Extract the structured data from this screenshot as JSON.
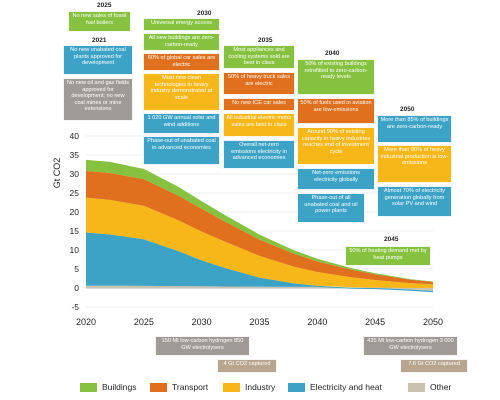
{
  "chart_data": {
    "type": "area",
    "ylabel": "Gt CO2",
    "ylim": [
      -5,
      40
    ],
    "yticks": [
      -5,
      0,
      5,
      10,
      15,
      20,
      25,
      30,
      35,
      40
    ],
    "xlim": [
      2020,
      2050
    ],
    "xticks": [
      2020,
      2025,
      2030,
      2035,
      2040,
      2045,
      2050
    ],
    "x": [
      2020,
      2022,
      2025,
      2028,
      2030,
      2032,
      2035,
      2038,
      2040,
      2043,
      2045,
      2048,
      2050
    ],
    "series": [
      {
        "name": "Other",
        "color": "#c9c2b1",
        "values": [
          0.6,
          0.6,
          0.55,
          0.5,
          0.45,
          0.4,
          0.35,
          0.3,
          0.3,
          0.2,
          0.1,
          -0.4,
          -0.8
        ]
      },
      {
        "name": "Electricity and heat",
        "color": "#3da3c6",
        "values": [
          14,
          13.5,
          12.3,
          9.2,
          6.8,
          4.9,
          2.4,
          0.9,
          0.3,
          -0.2,
          -0.3,
          -0.3,
          -0.3
        ]
      },
      {
        "name": "Industry",
        "color": "#f7b719",
        "values": [
          9.2,
          9.1,
          8.8,
          8.1,
          7.6,
          6.9,
          5.7,
          4.4,
          3.6,
          2.6,
          2.0,
          1.3,
          1.0
        ]
      },
      {
        "name": "Transport",
        "color": "#e06f1e",
        "values": [
          7.0,
          7.1,
          7.0,
          6.5,
          6.0,
          5.3,
          4.3,
          3.4,
          2.8,
          2.0,
          1.5,
          0.9,
          0.6
        ]
      },
      {
        "name": "Buildings",
        "color": "#86c240",
        "values": [
          2.9,
          2.9,
          2.7,
          2.3,
          2.0,
          1.7,
          1.3,
          0.9,
          0.7,
          0.4,
          0.3,
          0.15,
          0.1
        ]
      }
    ]
  },
  "legend": [
    {
      "label": "Buildings",
      "color": "#86c240"
    },
    {
      "label": "Transport",
      "color": "#e06f1e"
    },
    {
      "label": "Industry",
      "color": "#f7b719"
    },
    {
      "label": "Electricity and heat",
      "color": "#3da3c6"
    },
    {
      "label": "Other",
      "color": "#c9c2b1"
    }
  ],
  "milestones": {
    "y2025": "2025",
    "y2021": "2021",
    "y2030": "2030",
    "y2035": "2035",
    "y2040": "2040",
    "y2045": "2045",
    "y2050": "2050",
    "m2025_boilers": "No new sales of fossil fuel boilers",
    "m2021_coal": "No new unabated coal plants approved for development",
    "m2021_oilgas": "No new oil and gas fields approved for development; no new coal mines or mine extensions",
    "m2030_access": "Universal energy access",
    "m2030_buildings": "All new buildings are zero-carbon-ready",
    "m2030_cars": "60% of global car sales are electric",
    "m2030_industry": "Most new clean technologies in heavy industry demonstrated at scale",
    "m2030_solar": "1 020 GW annual solar and wind additions",
    "m2030_coal": "Phase-out of unabated coal in advanced economies",
    "m2035_appliances": "Most appliances and cooling systems sold are best in class",
    "m2035_trucks": "50% of heavy truck sales are electric",
    "m2035_ice": "No new ICE car sales",
    "m2035_motors": "All industrial electric motor sales are best in class",
    "m2035_power": "Overall net-zero emissions electricity in advanced economies",
    "m2040_retrofit": "50% of existing buildings retrofitted to zero-carbon-ready levels",
    "m2040_aviation": "50% of fuels used in aviation are low-emissions",
    "m2040_industry": "Around 90% of existing capacity in heavy industries reaches end of investment cycle",
    "m2040_electricity": "Net-zero emissions electricity globally",
    "m2040_coal": "Phase-out of all unabated coal and oil power plants",
    "m2045_heat": "50% of heating demand met by heat pumps",
    "m2050_buildings": "More than 85% of buildings are zero-carbon-ready",
    "m2050_industry": "More than 90% of heavy industrial production is low-emissions",
    "m2050_solar": "Almost 70% of electricity generation globally from solar PV and wind",
    "b2030_hydrogen": "150 Mt low-carbon hydrogen 850 GW electrolysers",
    "b2035_co2": "4 Gt CO2 captured",
    "b2045_hydrogen": "435 Mt low-carbon hydrogen 3 000 GW electrolysers",
    "b2050_co2": "7.6 Gt CO2 captured"
  }
}
